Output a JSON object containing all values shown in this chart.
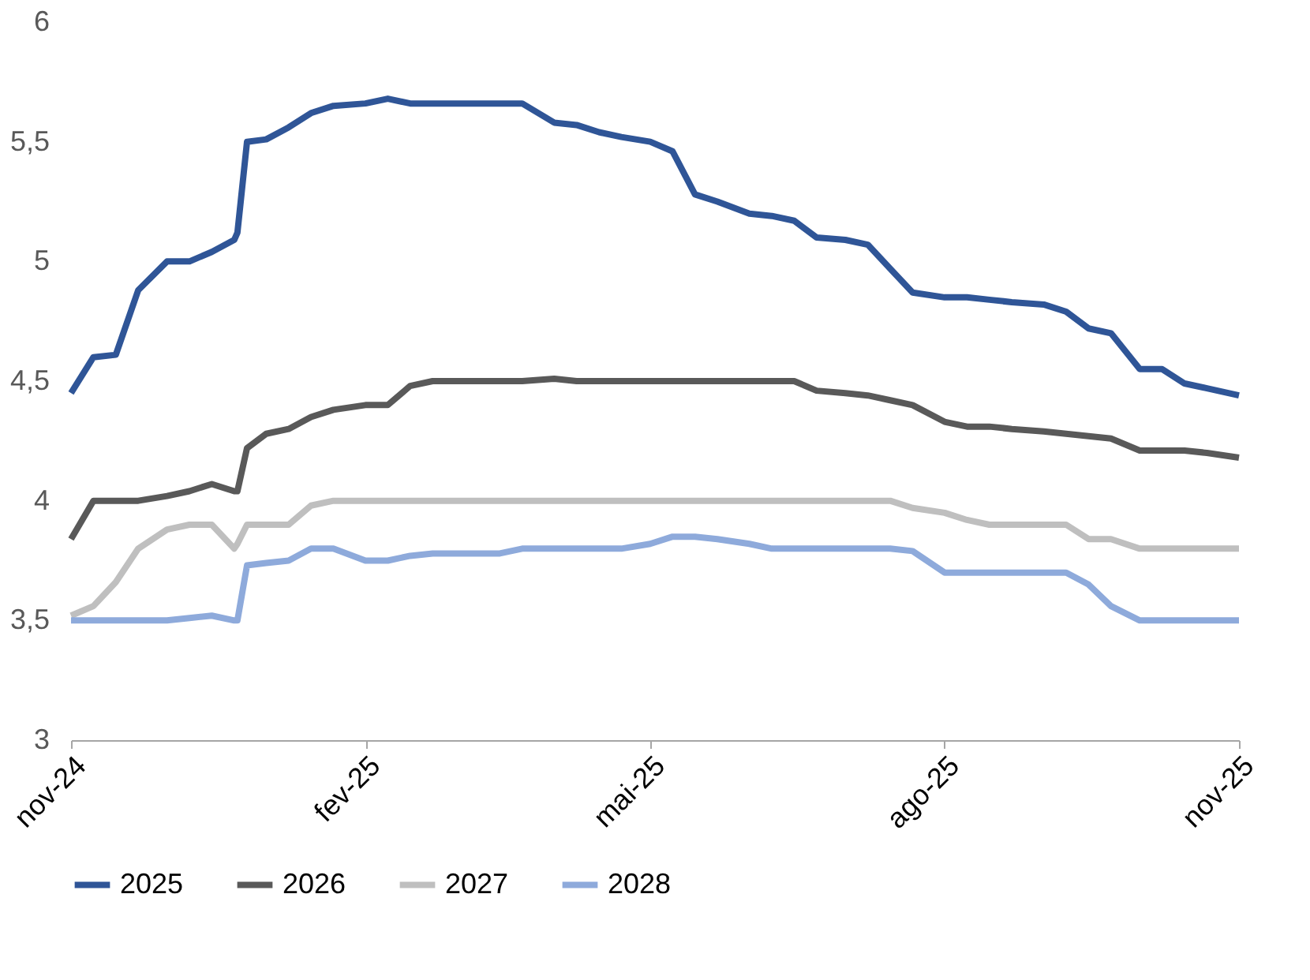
{
  "chart_data": {
    "type": "line",
    "x": [
      "2024-11-01",
      "2024-11-08",
      "2024-11-15",
      "2024-11-22",
      "2024-12-01",
      "2024-12-08",
      "2024-12-15",
      "2024-12-22",
      "2024-12-23",
      "2024-12-26",
      "2025-01-01",
      "2025-01-08",
      "2025-01-15",
      "2025-01-22",
      "2025-02-01",
      "2025-02-08",
      "2025-02-15",
      "2025-02-22",
      "2025-03-01",
      "2025-03-08",
      "2025-03-15",
      "2025-03-22",
      "2025-04-01",
      "2025-04-08",
      "2025-04-15",
      "2025-04-22",
      "2025-05-01",
      "2025-05-08",
      "2025-05-15",
      "2025-05-22",
      "2025-06-01",
      "2025-06-08",
      "2025-06-15",
      "2025-06-22",
      "2025-07-01",
      "2025-07-08",
      "2025-07-15",
      "2025-07-22",
      "2025-08-01",
      "2025-08-08",
      "2025-08-15",
      "2025-08-22",
      "2025-09-01",
      "2025-09-08",
      "2025-09-15",
      "2025-09-22",
      "2025-10-01",
      "2025-10-08",
      "2025-10-15",
      "2025-10-22",
      "2025-11-01"
    ],
    "series": [
      {
        "name": "2025",
        "color": "#2f5597",
        "values": [
          4.45,
          4.6,
          4.61,
          4.88,
          5.0,
          5.0,
          5.04,
          5.09,
          5.12,
          5.5,
          5.51,
          5.56,
          5.62,
          5.65,
          5.66,
          5.68,
          5.66,
          5.66,
          5.66,
          5.66,
          5.66,
          5.66,
          5.58,
          5.57,
          5.54,
          5.52,
          5.5,
          5.46,
          5.28,
          5.25,
          5.2,
          5.19,
          5.17,
          5.1,
          5.09,
          5.07,
          4.97,
          4.87,
          4.85,
          4.85,
          4.84,
          4.83,
          4.82,
          4.79,
          4.72,
          4.7,
          4.55,
          4.55,
          4.49,
          4.47,
          4.44
        ]
      },
      {
        "name": "2026",
        "color": "#595959",
        "values": [
          3.84,
          4.0,
          4.0,
          4.0,
          4.02,
          4.04,
          4.07,
          4.04,
          4.04,
          4.22,
          4.28,
          4.3,
          4.35,
          4.38,
          4.4,
          4.4,
          4.48,
          4.5,
          4.5,
          4.5,
          4.5,
          4.5,
          4.51,
          4.5,
          4.5,
          4.5,
          4.5,
          4.5,
          4.5,
          4.5,
          4.5,
          4.5,
          4.5,
          4.46,
          4.45,
          4.44,
          4.42,
          4.4,
          4.33,
          4.31,
          4.31,
          4.3,
          4.29,
          4.28,
          4.27,
          4.26,
          4.21,
          4.21,
          4.21,
          4.2,
          4.18
        ]
      },
      {
        "name": "2027",
        "color": "#bfbfbf",
        "values": [
          3.52,
          3.56,
          3.66,
          3.8,
          3.88,
          3.9,
          3.9,
          3.8,
          3.82,
          3.9,
          3.9,
          3.9,
          3.98,
          4.0,
          4.0,
          4.0,
          4.0,
          4.0,
          4.0,
          4.0,
          4.0,
          4.0,
          4.0,
          4.0,
          4.0,
          4.0,
          4.0,
          4.0,
          4.0,
          4.0,
          4.0,
          4.0,
          4.0,
          4.0,
          4.0,
          4.0,
          4.0,
          3.97,
          3.95,
          3.92,
          3.9,
          3.9,
          3.9,
          3.9,
          3.84,
          3.84,
          3.8,
          3.8,
          3.8,
          3.8,
          3.8
        ]
      },
      {
        "name": "2028",
        "color": "#8eaadb",
        "values": [
          3.5,
          3.5,
          3.5,
          3.5,
          3.5,
          3.51,
          3.52,
          3.5,
          3.5,
          3.73,
          3.74,
          3.75,
          3.8,
          3.8,
          3.75,
          3.75,
          3.77,
          3.78,
          3.78,
          3.78,
          3.78,
          3.8,
          3.8,
          3.8,
          3.8,
          3.8,
          3.82,
          3.85,
          3.85,
          3.84,
          3.82,
          3.8,
          3.8,
          3.8,
          3.8,
          3.8,
          3.8,
          3.79,
          3.7,
          3.7,
          3.7,
          3.7,
          3.7,
          3.7,
          3.65,
          3.56,
          3.5,
          3.5,
          3.5,
          3.5,
          3.5
        ]
      }
    ],
    "xlim": [
      "2024-11-01",
      "2025-11-01"
    ],
    "xticks": [
      {
        "value": "2024-11-01",
        "label": "nov-24"
      },
      {
        "value": "2025-02-01",
        "label": "fev-25"
      },
      {
        "value": "2025-05-01",
        "label": "mai-25"
      },
      {
        "value": "2025-08-01",
        "label": "ago-25"
      },
      {
        "value": "2025-11-01",
        "label": "nov-25"
      }
    ],
    "ylim": [
      3,
      6
    ],
    "yticks": [
      {
        "value": 3,
        "label": "3"
      },
      {
        "value": 3.5,
        "label": "3,5"
      },
      {
        "value": 4,
        "label": "4"
      },
      {
        "value": 4.5,
        "label": "4,5"
      },
      {
        "value": 5,
        "label": "5"
      },
      {
        "value": 5.5,
        "label": "5,5"
      },
      {
        "value": 6,
        "label": "6"
      }
    ],
    "grid": false,
    "legend": "bottom",
    "line_style": "solid",
    "marker": "none"
  }
}
